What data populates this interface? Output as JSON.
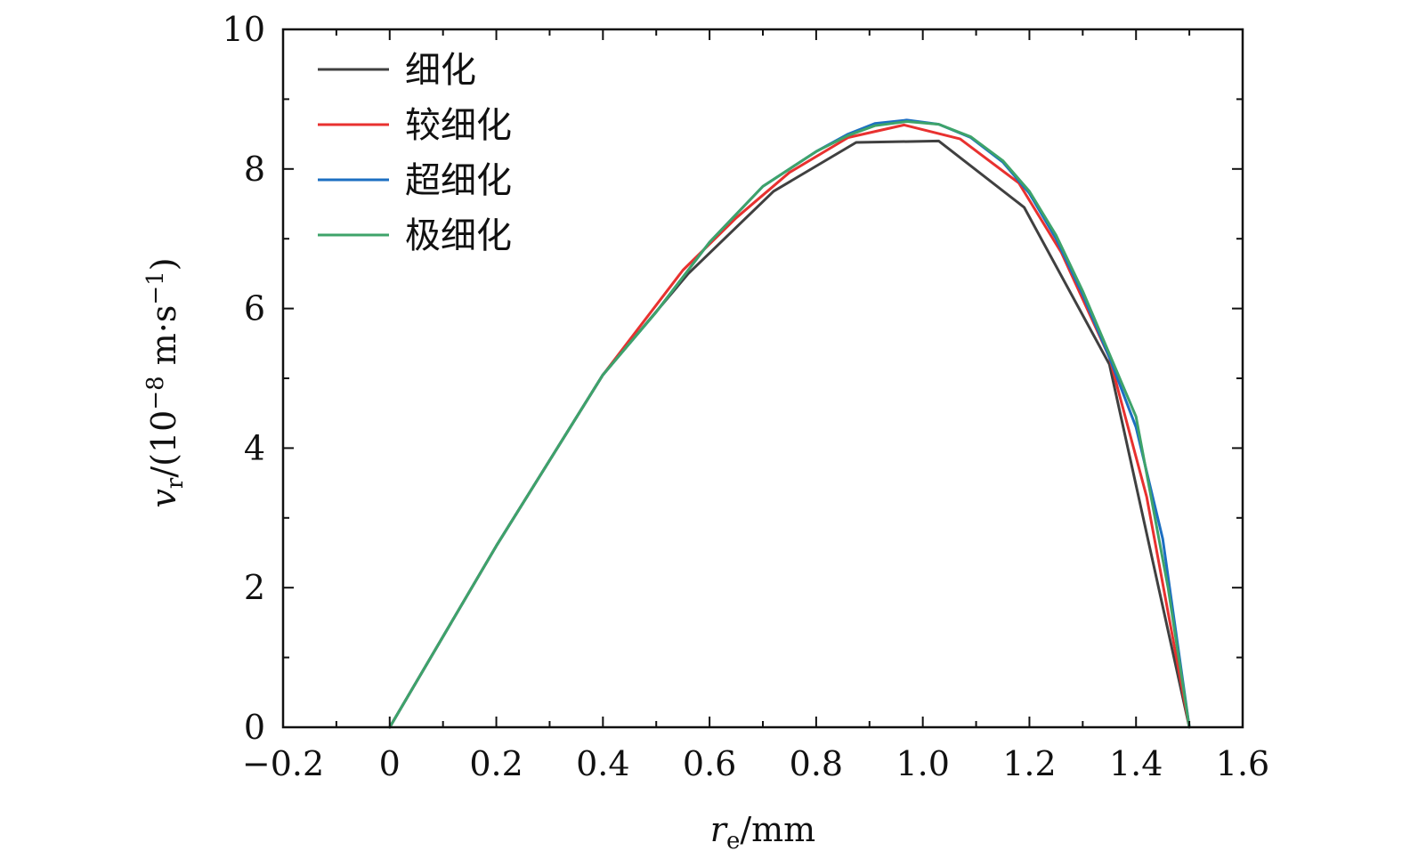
{
  "chart_data": {
    "type": "line",
    "xlabel": {
      "var": "r",
      "sub": "e",
      "unit": "/mm"
    },
    "ylabel": {
      "var": "v",
      "sub": "r",
      "unit_pre": "/(10",
      "exp": "−8",
      "unit_mid": " m·s",
      "exp2": "−1",
      "unit_post": ")"
    },
    "xlim": [
      -0.2,
      1.6
    ],
    "ylim": [
      0,
      10
    ],
    "xticks": [
      -0.2,
      0,
      0.2,
      0.4,
      0.6,
      0.8,
      1.0,
      1.2,
      1.4,
      1.6
    ],
    "xtick_labels": [
      "−0.2",
      "0",
      "0.2",
      "0.4",
      "0.6",
      "0.8",
      "1.0",
      "1.2",
      "1.4",
      "1.6"
    ],
    "yticks": [
      0,
      2,
      4,
      6,
      8,
      10
    ],
    "ytick_labels": [
      "0",
      "2",
      "4",
      "6",
      "8",
      "10"
    ],
    "legend_position": "top-left",
    "grid": false,
    "series": [
      {
        "name": "细化",
        "color": "#404040",
        "x": [
          0,
          0.2,
          0.4,
          0.56,
          0.72,
          0.875,
          1.03,
          1.19,
          1.35,
          1.5
        ],
        "y": [
          0,
          2.6,
          5.05,
          6.5,
          7.68,
          8.38,
          8.4,
          7.45,
          5.2,
          0
        ]
      },
      {
        "name": "较细化",
        "color": "#e8312f",
        "x": [
          0,
          0.2,
          0.4,
          0.55,
          0.65,
          0.75,
          0.86,
          0.965,
          1.07,
          1.18,
          1.26,
          1.35,
          1.42,
          1.5
        ],
        "y": [
          0,
          2.6,
          5.05,
          6.55,
          7.3,
          7.95,
          8.45,
          8.63,
          8.43,
          7.8,
          6.8,
          5.3,
          3.3,
          0
        ]
      },
      {
        "name": "超细化",
        "color": "#1c6fc2",
        "x": [
          0,
          0.2,
          0.4,
          0.5,
          0.6,
          0.7,
          0.8,
          0.86,
          0.91,
          0.97,
          1.03,
          1.09,
          1.15,
          1.2,
          1.25,
          1.3,
          1.35,
          1.4,
          1.45,
          1.5
        ],
        "y": [
          0,
          2.6,
          5.05,
          5.95,
          6.95,
          7.75,
          8.25,
          8.5,
          8.65,
          8.7,
          8.64,
          8.45,
          8.1,
          7.65,
          7.0,
          6.2,
          5.3,
          4.3,
          2.7,
          0
        ]
      },
      {
        "name": "极细化",
        "color": "#3ea36a",
        "x": [
          0,
          0.2,
          0.4,
          0.5,
          0.6,
          0.7,
          0.8,
          0.86,
          0.91,
          0.97,
          1.03,
          1.09,
          1.15,
          1.2,
          1.25,
          1.3,
          1.35,
          1.4,
          1.46,
          1.5
        ],
        "y": [
          0,
          2.6,
          5.05,
          5.95,
          6.95,
          7.75,
          8.25,
          8.48,
          8.62,
          8.68,
          8.64,
          8.46,
          8.12,
          7.68,
          7.05,
          6.25,
          5.35,
          4.45,
          2.0,
          0
        ]
      }
    ]
  }
}
